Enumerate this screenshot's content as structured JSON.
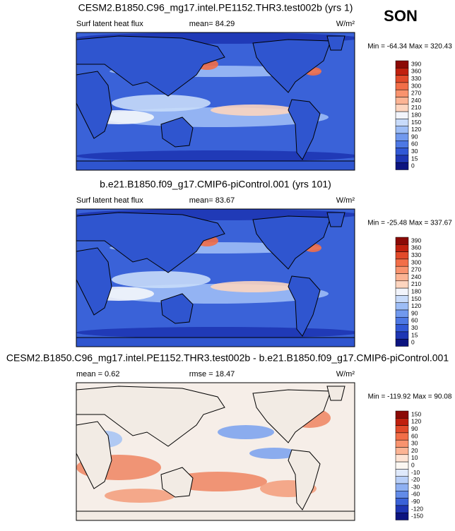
{
  "season": "SON",
  "panels": [
    {
      "title": "CESM2.B1850.C96_mg17.intel.PE1152.THR3.test002b (yrs 1)",
      "left_label": "Surf latent heat flux",
      "center_label": "mean=  84.29",
      "units": "W/m²",
      "range": "Min = -64.34 Max = 320.43",
      "colorbar": {
        "labels": [
          "390",
          "360",
          "330",
          "300",
          "270",
          "240",
          "210",
          "180",
          "150",
          "120",
          "90",
          "60",
          "30",
          "15",
          "0"
        ],
        "colors": [
          "#8b0a06",
          "#c0200e",
          "#e24a2a",
          "#f26e48",
          "#f9936e",
          "#fcb494",
          "#fdd5bf",
          "#f2f4fb",
          "#c8dbfa",
          "#9dbdf6",
          "#7199ee",
          "#4d78e4",
          "#3158d6",
          "#1e36b4",
          "#0c1480"
        ]
      }
    },
    {
      "title": "b.e21.B1850.f09_g17.CMIP6-piControl.001 (yrs 101)",
      "left_label": "Surf latent heat flux",
      "center_label": "mean=  83.67",
      "units": "W/m²",
      "range": "Min = -25.48 Max = 337.67",
      "colorbar": {
        "labels": [
          "390",
          "360",
          "330",
          "300",
          "270",
          "240",
          "210",
          "180",
          "150",
          "120",
          "90",
          "60",
          "30",
          "15",
          "0"
        ],
        "colors": [
          "#8b0a06",
          "#c0200e",
          "#e24a2a",
          "#f26e48",
          "#f9936e",
          "#fcb494",
          "#fdd5bf",
          "#f2f4fb",
          "#c8dbfa",
          "#9dbdf6",
          "#7199ee",
          "#4d78e4",
          "#3158d6",
          "#1e36b4",
          "#0c1480"
        ]
      }
    },
    {
      "title": "CESM2.B1850.C96_mg17.intel.PE1152.THR3.test002b - b.e21.B1850.f09_g17.CMIP6-piControl.001",
      "left_label": "mean =   0.62",
      "center_label": "rmse =  18.47",
      "units": "W/m²",
      "range": "Min = -119.92 Max =  90.08",
      "colorbar": {
        "labels": [
          "150",
          "120",
          "90",
          "60",
          "30",
          "20",
          "10",
          "0",
          "-10",
          "-20",
          "-30",
          "-60",
          "-90",
          "-120",
          "-150"
        ],
        "colors": [
          "#8b0a06",
          "#c0200e",
          "#e24a2a",
          "#f26e48",
          "#f9936e",
          "#fcb494",
          "#fde3d4",
          "#fbf7f2",
          "#dfe9fb",
          "#b8cff8",
          "#8eb0f2",
          "#628be8",
          "#3a62d8",
          "#1e36b4",
          "#0c1480"
        ]
      }
    }
  ]
}
